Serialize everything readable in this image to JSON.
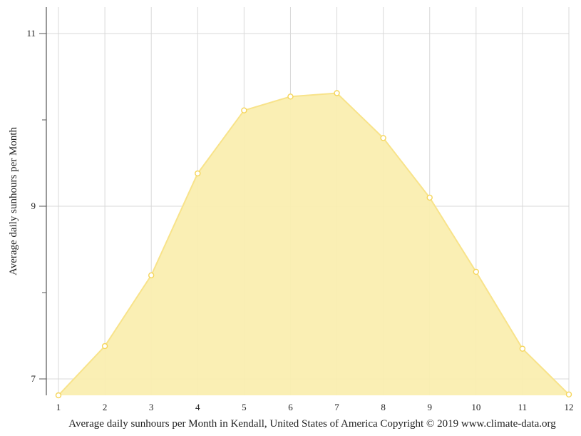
{
  "chart_data": {
    "type": "area",
    "title": "Average daily sunhours per Month in Kendall, United States of America Copyright © 2019 www.climate-data.org",
    "xlabel": "Average daily sunhours per Month in Kendall, United States of America Copyright © 2019 www.climate-data.org",
    "ylabel": "Average daily sunhours per Month",
    "categories": [
      "1",
      "2",
      "3",
      "4",
      "5",
      "6",
      "7",
      "8",
      "9",
      "10",
      "11",
      "12"
    ],
    "series": [
      {
        "name": "Average daily sunhours",
        "values": [
          6.81,
          7.38,
          8.2,
          9.38,
          10.11,
          10.27,
          10.31,
          9.79,
          9.1,
          8.24,
          7.35,
          6.82
        ]
      }
    ],
    "yticks_labeled": [
      7,
      9,
      11
    ],
    "yticks_minor": [
      8,
      10
    ],
    "ylim": [
      6.81,
      11.3
    ],
    "grid": true,
    "legend": "none",
    "colors": {
      "fill": "#faeeb0",
      "line": "#f8e38a",
      "marker_stroke": "#f5d55a",
      "marker_fill": "#ffffff",
      "grid": "#d9d9d9",
      "axis": "#555555"
    }
  }
}
